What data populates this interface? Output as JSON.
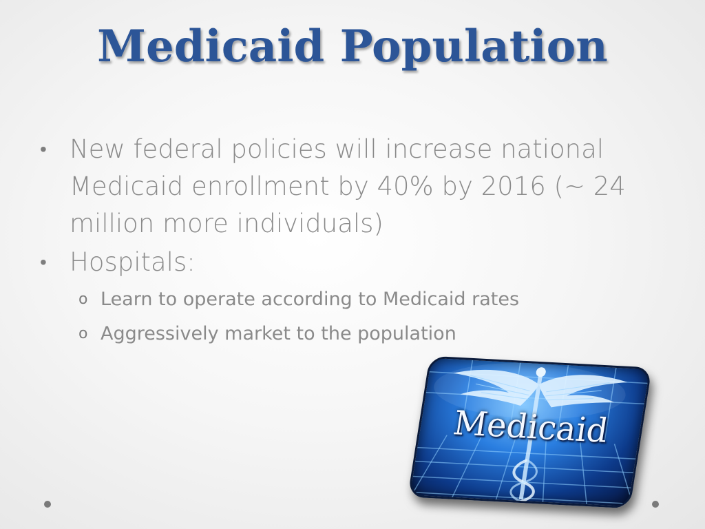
{
  "slide": {
    "title": "Medicaid Population",
    "bullets": [
      {
        "marker": "•",
        "text": "New federal policies will increase national Medicaid enrollment  by 40% by 2016 (~ 24 million more individuals)"
      },
      {
        "marker": "•",
        "text": "Hospitals:"
      }
    ],
    "sub_bullets": [
      {
        "marker": "o",
        "text": "Learn to operate according to Medicaid rates"
      },
      {
        "marker": "o",
        "text": "Aggressively market to the population"
      }
    ],
    "image": {
      "logo_text": "Medicaid",
      "icon": "caduceus-wings-icon"
    }
  },
  "colors": {
    "title": "#2c5597",
    "body_text": "#8a8a8a",
    "logo_blue": "#2a7ee0"
  }
}
